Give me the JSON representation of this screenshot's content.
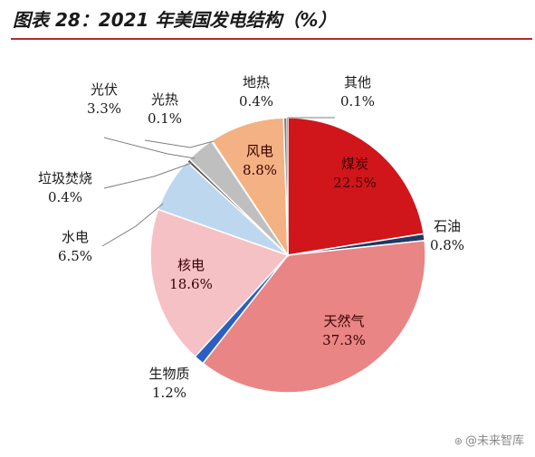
{
  "title": "图表 28：2021 年美国发电结构（%）",
  "watermark": "@未来智库",
  "chart_data": {
    "type": "pie",
    "title": "图表 28：2021 年美国发电结构（%）",
    "unit": "%",
    "slices": [
      {
        "name": "煤炭",
        "label": "煤炭",
        "value_label": "22.5%",
        "value": 22.5,
        "color": "#d0161b"
      },
      {
        "name": "石油",
        "label": "石油",
        "value_label": "0.8%",
        "value": 0.8,
        "color": "#1f3864"
      },
      {
        "name": "天然气",
        "label": "天然气",
        "value_label": "37.3%",
        "value": 37.3,
        "color": "#e98585"
      },
      {
        "name": "生物质",
        "label": "生物质",
        "value_label": "1.2%",
        "value": 1.2,
        "color": "#2b5fc1"
      },
      {
        "name": "核电",
        "label": "核电",
        "value_label": "18.6%",
        "value": 18.6,
        "color": "#f6c1c4"
      },
      {
        "name": "水电",
        "label": "水电",
        "value_label": "6.5%",
        "value": 6.5,
        "color": "#bdd7ee"
      },
      {
        "name": "垃圾焚烧",
        "label": "垃圾焚烧",
        "value_label": "0.4%",
        "value": 0.4,
        "color": "#595959"
      },
      {
        "name": "光伏",
        "label": "光伏",
        "value_label": "3.3%",
        "value": 3.3,
        "color": "#bfbfbf"
      },
      {
        "name": "光热",
        "label": "光热",
        "value_label": "0.1%",
        "value": 0.1,
        "color": "#d9d9d9"
      },
      {
        "name": "风电",
        "label": "风电",
        "value_label": "8.8%",
        "value": 8.8,
        "color": "#f4b183"
      },
      {
        "name": "地热",
        "label": "地热",
        "value_label": "0.4%",
        "value": 0.4,
        "color": "#7f7f7f"
      },
      {
        "name": "其他",
        "label": "其他",
        "value_label": "0.1%",
        "value": 0.1,
        "color": "#2f5597"
      }
    ]
  }
}
